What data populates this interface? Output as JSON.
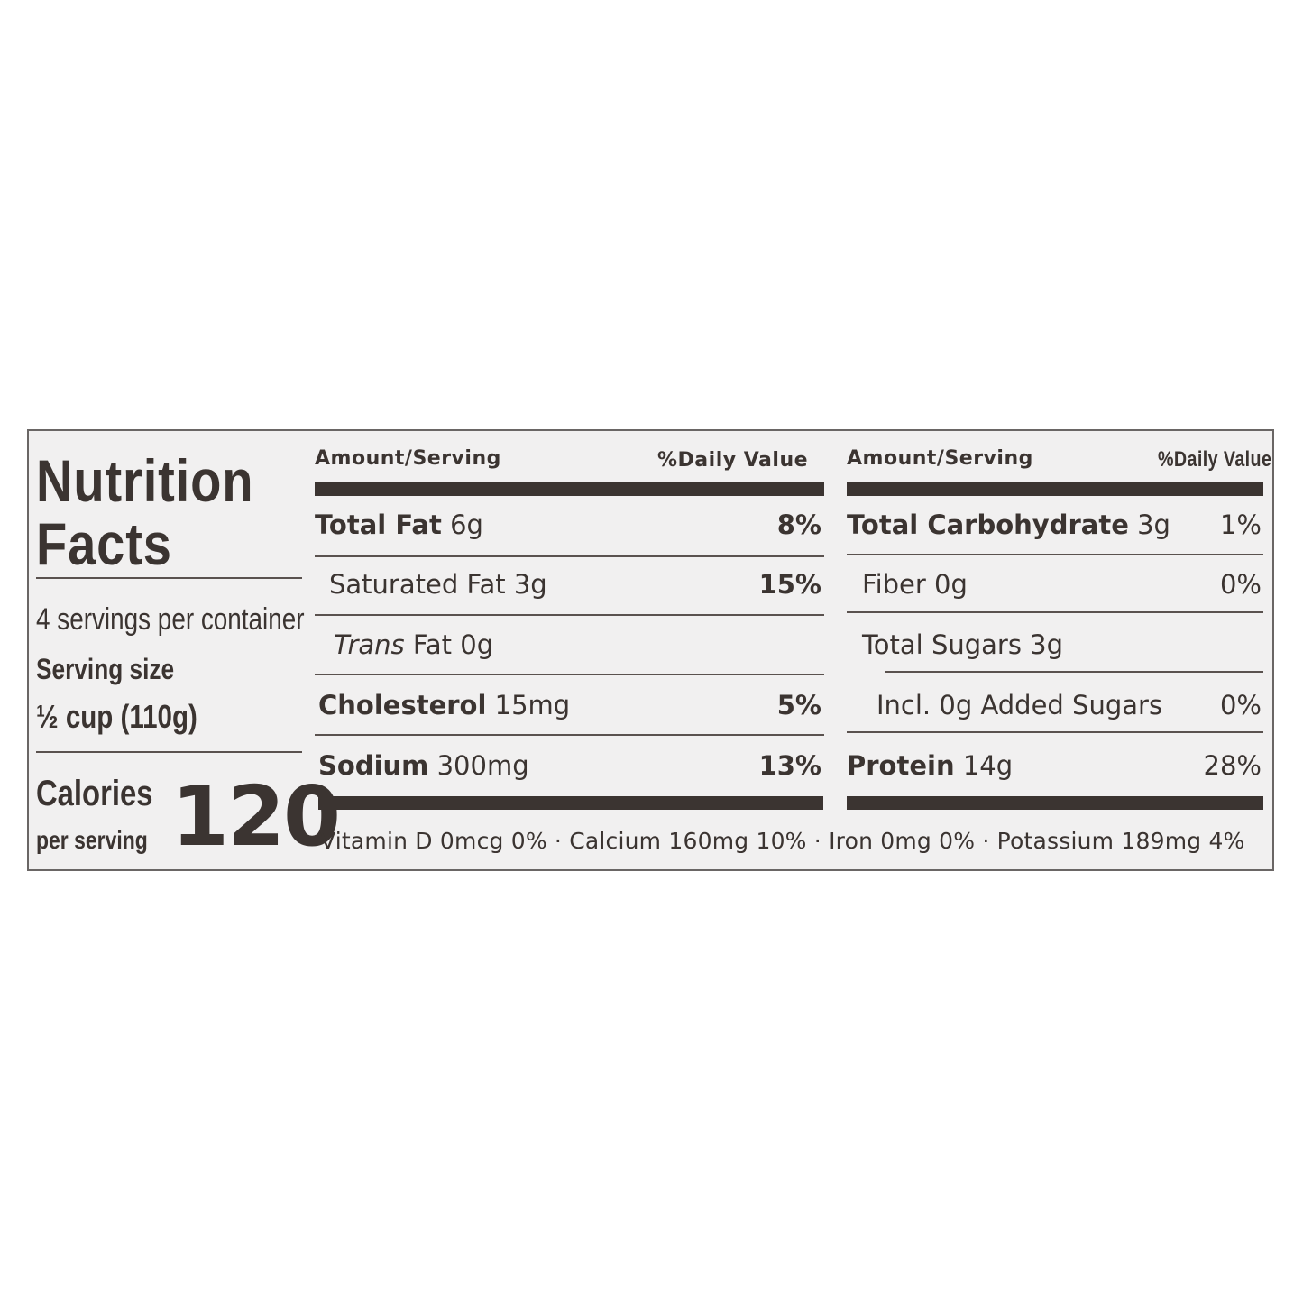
{
  "title_line1": "Nutrition",
  "title_line2": "Facts",
  "servings_per_container": "4 servings per container",
  "serving_size_label": "Serving size",
  "serving_size_value": "½ cup (110g)",
  "calories_label": "Calories",
  "calories_sublabel": "per serving",
  "calories_value": "120",
  "header": {
    "amount": "Amount/Serving",
    "daily_value": "%Daily Value"
  },
  "left_rows": [
    {
      "name": "Total Fat",
      "amount": "6g",
      "dv": "8%"
    },
    {
      "name": "Saturated Fat",
      "amount": "3g",
      "dv": "15%"
    },
    {
      "name": "Trans",
      "name_rest": "Fat",
      "amount": "0g",
      "dv": ""
    },
    {
      "name": "Cholesterol",
      "amount": "15mg",
      "dv": "5%"
    },
    {
      "name": "Sodium",
      "amount": "300mg",
      "dv": "13%"
    }
  ],
  "right_rows": [
    {
      "name": "Total Carbohydrate",
      "amount": "3g",
      "dv": "1%"
    },
    {
      "name": "Fiber",
      "amount": "0g",
      "dv": "0%"
    },
    {
      "name": "Total Sugars",
      "amount": "3g",
      "dv": ""
    },
    {
      "name": "Incl. 0g Added Sugars",
      "amount": "",
      "dv": "0%"
    },
    {
      "name": "Protein",
      "amount": "14g",
      "dv": "28%"
    }
  ],
  "footer": "Vitamin D 0mcg 0% · Calcium 160mg 10% · Iron 0mg 0% · Potassium 189mg 4%",
  "colors": {
    "ink": "#3b3431",
    "label_background": "#f1f0f0"
  }
}
